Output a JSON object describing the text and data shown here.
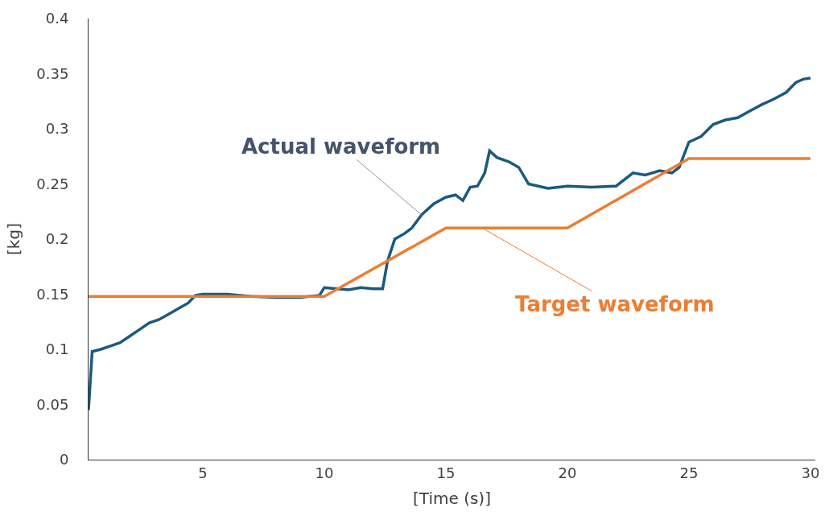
{
  "chart_data": {
    "type": "line",
    "xlabel": "[Time (s)]",
    "ylabel": "[kg]",
    "xlim": [
      0.3,
      30.2
    ],
    "xticks": [
      5,
      10,
      15,
      20,
      25,
      30
    ],
    "ylim": [
      0,
      0.4
    ],
    "yticks": [
      0,
      0.05,
      0.1,
      0.15,
      0.2,
      0.25,
      0.3,
      0.35,
      0.4
    ],
    "series": [
      {
        "color": "#1b5a7e",
        "x": [
          0.3,
          0.45,
          0.8,
          1.2,
          1.6,
          2.0,
          2.4,
          2.8,
          3.2,
          3.6,
          4.0,
          4.4,
          4.7,
          5.0,
          6.0,
          7.0,
          8.0,
          9.0,
          9.8,
          10.0,
          10.5,
          11,
          11.5,
          12,
          12.4,
          12.6,
          12.9,
          13.3,
          13.6,
          14,
          14.5,
          15.0,
          15.4,
          15.7,
          16.0,
          16.3,
          16.6,
          16.8,
          17.1,
          17.6,
          18.0,
          18.4,
          18.8,
          19.2,
          20,
          21,
          22,
          22.7,
          23.2,
          23.8,
          24.3,
          24.6,
          25.0,
          25.5,
          26,
          26.5,
          27,
          27.5,
          28,
          28.5,
          29,
          29.4,
          29.7,
          30.0
        ],
        "values": [
          0.045,
          0.098,
          0.1,
          0.103,
          0.106,
          0.112,
          0.118,
          0.124,
          0.127,
          0.132,
          0.137,
          0.142,
          0.149,
          0.15,
          0.15,
          0.148,
          0.147,
          0.147,
          0.149,
          0.156,
          0.155,
          0.154,
          0.156,
          0.155,
          0.155,
          0.18,
          0.2,
          0.205,
          0.21,
          0.222,
          0.232,
          0.238,
          0.24,
          0.235,
          0.247,
          0.248,
          0.26,
          0.28,
          0.274,
          0.27,
          0.265,
          0.25,
          0.248,
          0.246,
          0.248,
          0.247,
          0.248,
          0.26,
          0.258,
          0.262,
          0.26,
          0.265,
          0.288,
          0.293,
          0.304,
          0.308,
          0.31,
          0.316,
          0.322,
          0.327,
          0.333,
          0.342,
          0.345,
          0.346
        ]
      },
      {
        "color": "#ed7d31",
        "x": [
          0.3,
          10,
          15,
          20,
          25,
          30
        ],
        "values": [
          0.148,
          0.148,
          0.21,
          0.21,
          0.273,
          0.273
        ]
      }
    ],
    "annotations": [
      {
        "text": "Actual waveform",
        "x": 14,
        "y": 0.222
      },
      {
        "text": "Target waveform",
        "x": 16.5,
        "y": 0.21
      }
    ]
  }
}
